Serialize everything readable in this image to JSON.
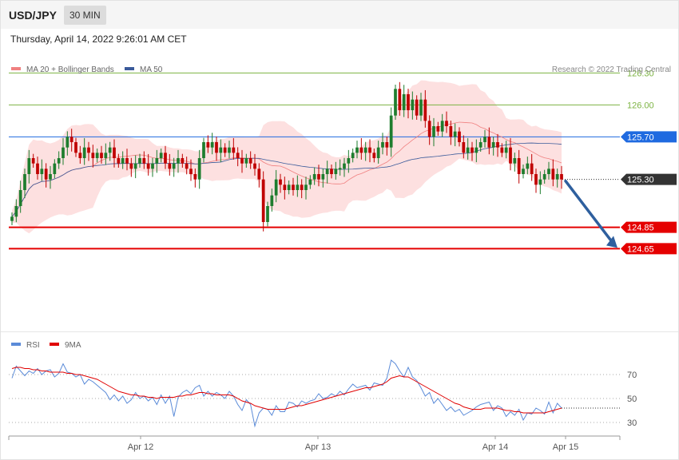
{
  "header": {
    "pair": "USD/JPY",
    "timeframe": "30 MIN"
  },
  "timestamp": "Thursday, April 14, 2022 9:26:01 AM CET",
  "credit": "Research © 2022 Trading Central",
  "colors": {
    "support": "#e50000",
    "resistance_green": "#7cb342",
    "pivot_blue": "#1f6ae0",
    "current_dark": "#333333",
    "bollinger_fill": "#fde0e0",
    "ma20": "#f08080",
    "ma50": "#3a5a9a",
    "candle_up": "#1e7d2e",
    "candle_down": "#c00000",
    "rsi": "#5b8bd8",
    "rsi_ma": "#e00000",
    "arrow": "#2e5f9e"
  },
  "chart_data": [
    {
      "type": "candlestick",
      "title": "",
      "legend": [
        {
          "name": "MA 20 + Bollinger Bands",
          "color": "#f08080"
        },
        {
          "name": "MA 50",
          "color": "#3a5a9a"
        }
      ],
      "legend_position": "top-left",
      "x_ticks": [
        "Apr 12",
        "Apr 13",
        "Apr 14",
        "Apr 15"
      ],
      "ylim": [
        124.15,
        126.4
      ],
      "levels": [
        {
          "value": 126.3,
          "label": "126.30",
          "kind": "resistance"
        },
        {
          "value": 126.0,
          "label": "126.00",
          "kind": "resistance"
        },
        {
          "value": 125.7,
          "label": "125.70",
          "kind": "pivot"
        },
        {
          "value": 125.3,
          "label": "125.30",
          "kind": "current"
        },
        {
          "value": 124.85,
          "label": "124.85",
          "kind": "support"
        },
        {
          "value": 124.65,
          "label": "124.65",
          "kind": "support"
        }
      ],
      "forecast_target": 124.65,
      "close_series": [
        124.95,
        125.05,
        125.2,
        125.35,
        125.5,
        125.45,
        125.35,
        125.4,
        125.3,
        125.35,
        125.45,
        125.5,
        125.6,
        125.7,
        125.65,
        125.55,
        125.5,
        125.6,
        125.55,
        125.5,
        125.55,
        125.5,
        125.55,
        125.6,
        125.5,
        125.45,
        125.5,
        125.45,
        125.4,
        125.45,
        125.5,
        125.45,
        125.4,
        125.45,
        125.5,
        125.55,
        125.45,
        125.4,
        125.45,
        125.5,
        125.45,
        125.4,
        125.35,
        125.3,
        125.5,
        125.65,
        125.6,
        125.65,
        125.55,
        125.6,
        125.55,
        125.6,
        125.55,
        125.5,
        125.45,
        125.5,
        125.45,
        125.4,
        125.3,
        124.9,
        125.05,
        125.15,
        125.3,
        125.25,
        125.2,
        125.25,
        125.2,
        125.25,
        125.2,
        125.25,
        125.3,
        125.35,
        125.3,
        125.35,
        125.4,
        125.35,
        125.4,
        125.4,
        125.45,
        125.5,
        125.55,
        125.6,
        125.55,
        125.6,
        125.55,
        125.5,
        125.6,
        125.65,
        125.6,
        125.9,
        126.15,
        125.95,
        126.1,
        125.95,
        126.05,
        125.9,
        126.05,
        125.85,
        125.7,
        125.8,
        125.75,
        125.85,
        125.8,
        125.7,
        125.75,
        125.65,
        125.55,
        125.6,
        125.55,
        125.6,
        125.65,
        125.7,
        125.6,
        125.65,
        125.6,
        125.55,
        125.6,
        125.45,
        125.5,
        125.35,
        125.4,
        125.45,
        125.35,
        125.25,
        125.3,
        125.35,
        125.4,
        125.3,
        125.35,
        125.3
      ],
      "rsi": {
        "legend": [
          {
            "name": "RSI",
            "color": "#5b8bd8"
          },
          {
            "name": "9MA",
            "color": "#e00000"
          }
        ],
        "ylim": [
          20,
          80
        ],
        "ticks": [
          70,
          50,
          30
        ],
        "rsi_series": [
          67,
          77,
          73,
          69,
          73,
          71,
          75,
          70,
          73,
          74,
          68,
          71,
          79,
          72,
          71,
          68,
          70,
          62,
          66,
          64,
          61,
          58,
          55,
          49,
          53,
          48,
          52,
          46,
          49,
          55,
          50,
          52,
          48,
          51,
          45,
          53,
          46,
          52,
          35,
          51,
          55,
          57,
          54,
          59,
          61,
          52,
          56,
          52,
          55,
          53,
          50,
          56,
          52,
          45,
          40,
          49,
          45,
          27,
          38,
          42,
          41,
          36,
          44,
          39,
          39,
          47,
          46,
          43,
          48,
          46,
          48,
          49,
          54,
          50,
          51,
          54,
          52,
          56,
          53,
          58,
          62,
          59,
          60,
          61,
          57,
          63,
          62,
          61,
          67,
          82,
          79,
          73,
          68,
          76,
          68,
          65,
          59,
          52,
          55,
          46,
          50,
          45,
          40,
          43,
          39,
          41,
          36,
          38,
          40,
          43,
          45,
          46,
          47,
          40,
          44,
          42,
          35,
          39,
          36,
          41,
          32,
          38,
          37,
          42,
          40,
          37,
          47,
          38,
          46,
          42
        ],
        "ma_series": [
          75,
          76,
          76,
          75,
          75,
          74,
          74,
          73,
          73,
          72,
          72,
          72,
          72,
          71,
          71,
          70,
          70,
          69,
          68,
          67,
          66,
          64,
          62,
          60,
          58,
          56,
          55,
          54,
          53,
          53,
          52,
          52,
          51,
          51,
          50,
          51,
          51,
          51,
          51,
          52,
          52,
          53,
          53,
          54,
          55,
          55,
          54,
          54,
          53,
          53,
          53,
          53,
          52,
          50,
          48,
          47,
          46,
          44,
          43,
          42,
          41,
          41,
          41,
          41,
          41,
          42,
          43,
          44,
          44,
          45,
          46,
          47,
          48,
          49,
          50,
          51,
          52,
          53,
          54,
          55,
          56,
          57,
          58,
          59,
          59,
          60,
          61,
          62,
          64,
          67,
          68,
          69,
          68,
          68,
          66,
          64,
          62,
          60,
          58,
          56,
          54,
          52,
          50,
          48,
          46,
          45,
          43,
          42,
          41,
          41,
          41,
          42,
          42,
          42,
          42,
          41,
          40,
          40,
          39,
          39,
          38,
          38,
          38,
          38,
          38,
          38,
          39,
          40,
          41,
          42
        ]
      }
    }
  ]
}
